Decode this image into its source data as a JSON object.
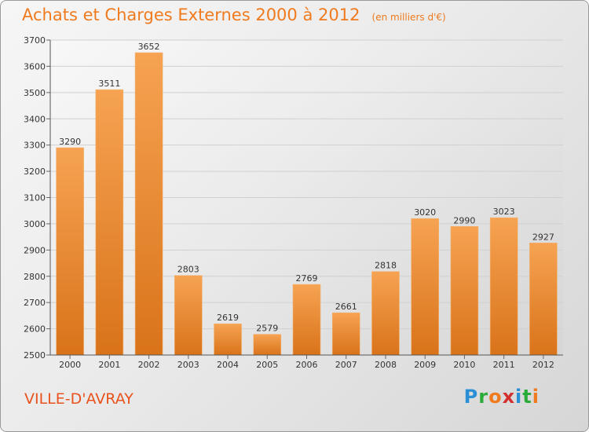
{
  "title": "Achats et Charges Externes 2000 à 2012",
  "subtitle": "(en milliers d'€)",
  "city": "VILLE-D'AVRAY",
  "logo": {
    "letters": [
      "P",
      "r",
      "o",
      "x",
      "i",
      "t",
      "i"
    ],
    "colors": [
      "#2b8fd6",
      "#2bab3a",
      "#f07a1e",
      "#d32f2f",
      "#2b8fd6",
      "#2bab3a",
      "#f07a1e"
    ]
  },
  "colors": {
    "bar_light": "#f6a352",
    "bar_dark": "#d9731a",
    "title": "#f07a1e",
    "city": "#e8531e"
  },
  "chart_data": {
    "type": "bar",
    "title": "Achats et Charges Externes 2000 à 2012",
    "subtitle": "(en milliers d'€)",
    "xlabel": "",
    "ylabel": "",
    "categories": [
      "2000",
      "2001",
      "2002",
      "2003",
      "2004",
      "2005",
      "2006",
      "2007",
      "2008",
      "2009",
      "2010",
      "2011",
      "2012"
    ],
    "values": [
      3290,
      3511,
      3652,
      2803,
      2619,
      2579,
      2769,
      2661,
      2818,
      3020,
      2990,
      3023,
      2927
    ],
    "ylim": [
      2500,
      3700
    ],
    "yticks": [
      2500,
      2600,
      2700,
      2800,
      2900,
      3000,
      3100,
      3200,
      3300,
      3400,
      3500,
      3600,
      3700
    ],
    "grid": true,
    "data_labels": true
  }
}
